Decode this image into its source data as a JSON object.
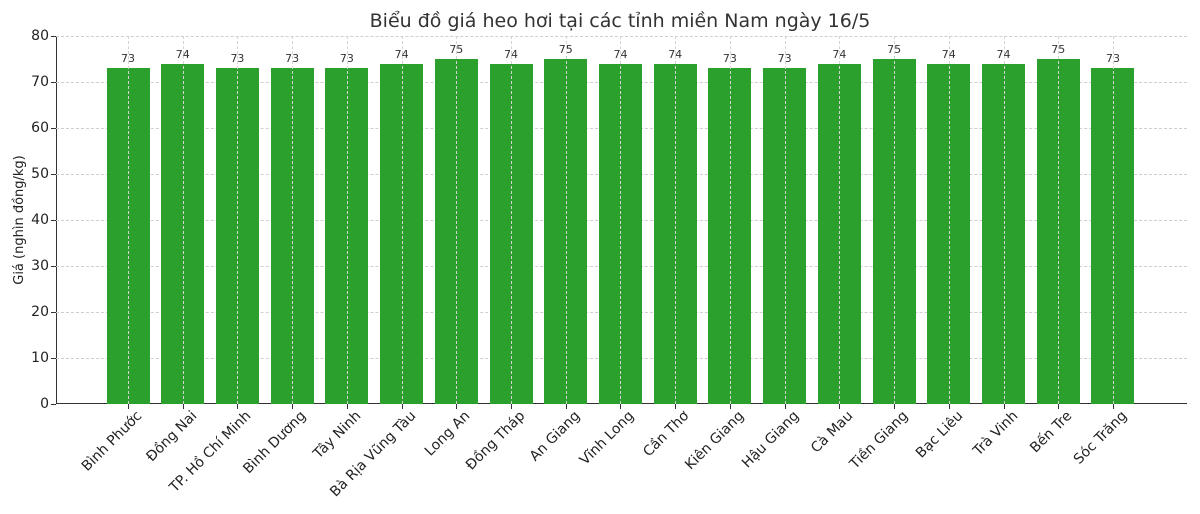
{
  "chart_data": {
    "type": "bar",
    "title": "Biểu đồ giá heo hơi tại các tỉnh miền Nam ngày 16/5",
    "xlabel": "",
    "ylabel": "Giá (nghìn đồng/kg)",
    "ylim": [
      0,
      80
    ],
    "yticks": [
      0,
      10,
      20,
      30,
      40,
      50,
      60,
      70,
      80
    ],
    "grid": true,
    "bar_color": "#2ca02c",
    "categories": [
      "Bình Phước",
      "Đồng Nai",
      "TP. Hồ Chí Minh",
      "Bình Dương",
      "Tây Ninh",
      "Bà Rịa Vũng Tàu",
      "Long An",
      "Đồng Tháp",
      "An Giang",
      "Vĩnh Long",
      "Cần Thơ",
      "Kiên Giang",
      "Hậu Giang",
      "Cà Mau",
      "Tiền Giang",
      "Bạc Liêu",
      "Trà Vinh",
      "Bến Tre",
      "Sóc Trăng"
    ],
    "values": [
      73,
      74,
      73,
      73,
      73,
      74,
      75,
      74,
      75,
      74,
      74,
      73,
      73,
      74,
      75,
      74,
      74,
      75,
      73
    ]
  }
}
